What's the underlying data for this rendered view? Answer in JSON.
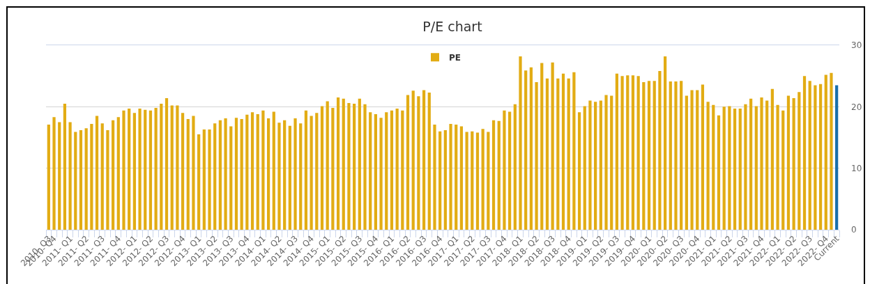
{
  "chart_data": {
    "type": "bar",
    "title": "P/E chart",
    "categories": [
      "2010- Q3",
      "2010- Q4",
      null,
      null,
      "2011- Q1",
      null,
      null,
      "2011- Q2",
      null,
      null,
      "2011- Q3",
      null,
      null,
      "2011- Q4",
      null,
      null,
      "2012- Q1",
      null,
      null,
      "2012- Q2",
      null,
      null,
      "2012- Q3",
      null,
      null,
      "2012- Q4",
      null,
      null,
      "2013- Q1",
      null,
      null,
      "2013- Q2",
      null,
      null,
      "2013- Q3",
      null,
      null,
      "2013- Q4",
      null,
      null,
      "2014- Q1",
      null,
      null,
      "2014- Q2",
      null,
      null,
      "2014- Q3",
      null,
      null,
      "2014- Q4",
      null,
      null,
      "2015- Q1",
      null,
      null,
      "2015- Q2",
      null,
      null,
      "2015- Q3",
      null,
      null,
      "2015- Q4",
      null,
      null,
      "2016- Q1",
      null,
      null,
      "2016- Q2",
      null,
      null,
      "2016- Q3",
      null,
      null,
      "2016- Q4",
      null,
      null,
      "2017- Q1",
      null,
      null,
      "2017- Q2",
      null,
      null,
      "2017- Q3",
      null,
      null,
      "2017- Q4",
      null,
      null,
      "2018- Q1",
      null,
      null,
      "2018- Q2",
      null,
      null,
      "2018- Q3",
      null,
      null,
      "2018- Q4",
      null,
      null,
      "2019- Q1",
      null,
      null,
      "2019- Q2",
      null,
      null,
      "2019- Q3",
      null,
      null,
      "2019- Q4",
      null,
      null,
      "2020- Q1",
      null,
      null,
      "2020- Q2",
      null,
      null,
      "2020- Q3",
      null,
      null,
      "2020- Q4",
      null,
      null,
      "2021- Q1",
      null,
      null,
      "2021- Q2",
      null,
      null,
      "2021- Q3",
      null,
      null,
      "2021- Q4",
      null,
      null,
      "2022- Q1",
      null,
      null,
      "2022- Q2",
      null,
      null,
      "2022- Q3",
      null,
      null,
      "2022- Q4",
      null,
      "Current"
    ],
    "series": [
      {
        "name": "PE",
        "values": [
          17.1,
          18.3,
          17.5,
          20.5,
          17.5,
          15.9,
          16.2,
          16.5,
          17.2,
          18.5,
          17.3,
          16.2,
          17.8,
          18.3,
          19.4,
          19.7,
          19.0,
          19.7,
          19.5,
          19.4,
          19.8,
          20.5,
          21.4,
          20.2,
          20.2,
          19.0,
          18.0,
          18.5,
          15.5,
          16.3,
          16.3,
          17.3,
          17.8,
          18.1,
          16.8,
          18.2,
          18.0,
          18.7,
          19.1,
          18.8,
          19.4,
          18.1,
          19.2,
          17.4,
          17.8,
          16.9,
          18.1,
          17.3,
          19.4,
          18.5,
          19.0,
          20.1,
          20.9,
          19.8,
          21.5,
          21.3,
          20.6,
          20.5,
          21.3,
          20.4,
          19.1,
          18.8,
          18.2,
          19.1,
          19.4,
          19.7,
          19.4,
          21.9,
          22.6,
          21.7,
          22.7,
          22.3,
          17.1,
          16.0,
          16.2,
          17.2,
          17.1,
          16.8,
          15.9,
          16.0,
          15.8,
          16.4,
          15.9,
          17.8,
          17.7,
          19.4,
          19.2,
          20.4,
          28.2,
          25.9,
          26.4,
          24.0,
          27.1,
          24.6,
          27.2,
          24.6,
          25.4,
          24.6,
          25.6,
          19.1,
          20.1,
          21.0,
          20.8,
          21.0,
          21.9,
          21.8,
          25.4,
          25.0,
          25.1,
          25.1,
          25.0,
          24.0,
          24.2,
          24.2,
          25.8,
          28.2,
          24.1,
          24.1,
          24.2,
          21.8,
          22.7,
          22.7,
          23.6,
          20.8,
          20.3,
          18.6,
          20.0,
          20.1,
          19.7,
          19.7,
          20.4,
          21.3,
          20.1,
          21.5,
          21.0,
          22.9,
          20.3,
          19.4,
          21.8,
          21.4,
          22.4,
          25.0,
          24.2,
          23.5,
          23.7,
          25.2,
          25.5,
          23.5
        ],
        "colors": [
          "#e2ac14",
          "#e2ac14",
          "#e2ac14",
          "#e2ac14",
          "#e2ac14",
          "#e2ac14",
          "#e2ac14",
          "#e2ac14",
          "#e2ac14",
          "#e2ac14",
          "#e2ac14",
          "#e2ac14",
          "#e2ac14",
          "#e2ac14",
          "#e2ac14",
          "#e2ac14",
          "#e2ac14",
          "#e2ac14",
          "#e2ac14",
          "#e2ac14",
          "#e2ac14",
          "#e2ac14",
          "#e2ac14",
          "#e2ac14",
          "#e2ac14",
          "#e2ac14",
          "#e2ac14",
          "#e2ac14",
          "#e2ac14",
          "#e2ac14",
          "#e2ac14",
          "#e2ac14",
          "#e2ac14",
          "#e2ac14",
          "#e2ac14",
          "#e2ac14",
          "#e2ac14",
          "#e2ac14",
          "#e2ac14",
          "#e2ac14",
          "#e2ac14",
          "#e2ac14",
          "#e2ac14",
          "#e2ac14",
          "#e2ac14",
          "#e2ac14",
          "#e2ac14",
          "#e2ac14",
          "#e2ac14",
          "#e2ac14",
          "#e2ac14",
          "#e2ac14",
          "#e2ac14",
          "#e2ac14",
          "#e2ac14",
          "#e2ac14",
          "#e2ac14",
          "#e2ac14",
          "#e2ac14",
          "#e2ac14",
          "#e2ac14",
          "#e2ac14",
          "#e2ac14",
          "#e2ac14",
          "#e2ac14",
          "#e2ac14",
          "#e2ac14",
          "#e2ac14",
          "#e2ac14",
          "#e2ac14",
          "#e2ac14",
          "#e2ac14",
          "#e2ac14",
          "#e2ac14",
          "#e2ac14",
          "#e2ac14",
          "#e2ac14",
          "#e2ac14",
          "#e2ac14",
          "#e2ac14",
          "#e2ac14",
          "#e2ac14",
          "#e2ac14",
          "#e2ac14",
          "#e2ac14",
          "#e2ac14",
          "#e2ac14",
          "#e2ac14",
          "#e2ac14",
          "#e2ac14",
          "#e2ac14",
          "#e2ac14",
          "#e2ac14",
          "#e2ac14",
          "#e2ac14",
          "#e2ac14",
          "#e2ac14",
          "#e2ac14",
          "#e2ac14",
          "#e2ac14",
          "#e2ac14",
          "#e2ac14",
          "#e2ac14",
          "#e2ac14",
          "#e2ac14",
          "#e2ac14",
          "#e2ac14",
          "#e2ac14",
          "#e2ac14",
          "#e2ac14",
          "#e2ac14",
          "#e2ac14",
          "#e2ac14",
          "#e2ac14",
          "#e2ac14",
          "#e2ac14",
          "#e2ac14",
          "#e2ac14",
          "#e2ac14",
          "#e2ac14",
          "#e2ac14",
          "#e2ac14",
          "#e2ac14",
          "#e2ac14",
          "#e2ac14",
          "#e2ac14",
          "#e2ac14",
          "#e2ac14",
          "#e2ac14",
          "#e2ac14",
          "#e2ac14",
          "#e2ac14",
          "#e2ac14",
          "#e2ac14",
          "#e2ac14",
          "#e2ac14",
          "#e2ac14",
          "#e2ac14",
          "#e2ac14",
          "#e2ac14",
          "#e2ac14",
          "#e2ac14",
          "#e2ac14",
          "#e2ac14",
          "#e2ac14",
          "#e2ac14",
          "#e2ac14",
          "#1a6fab"
        ]
      }
    ],
    "ylim": [
      0,
      30
    ],
    "yticks": [
      0,
      10,
      20,
      30
    ],
    "grid": "y",
    "legend": "top"
  }
}
